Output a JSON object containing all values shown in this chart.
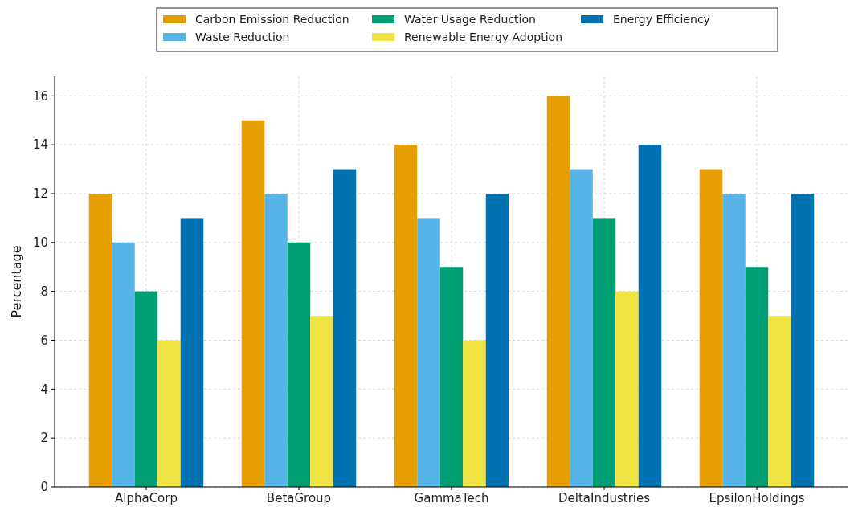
{
  "chart_data": {
    "type": "bar",
    "ylabel": "Percentage",
    "categories": [
      "AlphaCorp",
      "BetaGroup",
      "GammaTech",
      "DeltaIndustries",
      "EpsilonHoldings"
    ],
    "series": [
      {
        "name": "Carbon Emission Reduction",
        "color": "#e69f00",
        "values": [
          12,
          15,
          14,
          16,
          13
        ]
      },
      {
        "name": "Waste Reduction",
        "color": "#56b4e9",
        "values": [
          10,
          12,
          11,
          13,
          12
        ]
      },
      {
        "name": "Water Usage Reduction",
        "color": "#009e73",
        "values": [
          8,
          10,
          9,
          11,
          9
        ]
      },
      {
        "name": "Renewable Energy Adoption",
        "color": "#f0e442",
        "values": [
          6,
          7,
          6,
          8,
          7
        ]
      },
      {
        "name": "Energy Efficiency",
        "color": "#0072b2",
        "values": [
          11,
          13,
          12,
          14,
          12
        ]
      }
    ],
    "ylim": [
      0,
      16.8
    ],
    "yticks": [
      0,
      2,
      4,
      6,
      8,
      10,
      12,
      14,
      16
    ],
    "grid": true,
    "legend": "top"
  }
}
